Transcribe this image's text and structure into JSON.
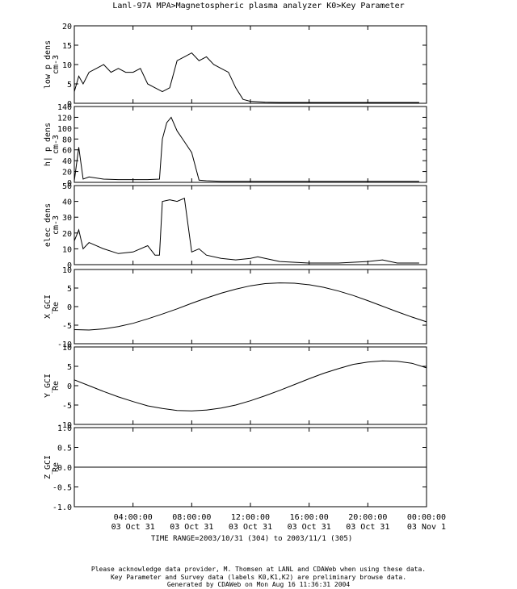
{
  "title": "Lanl-97A  MPA>Magnetospheric plasma analyzer  K0>Key Parameter",
  "time_range": "TIME RANGE=2003/10/31 (304) to 2003/11/1 (305)",
  "footer": [
    "Please acknowledge data provider, M. Thomsen at LANL and CDAWeb when using these data.",
    "Key Parameter and Survey data (labels K0,K1,K2) are preliminary browse data.",
    "Generated by CDAWeb on Mon Aug 16 11:36:31 2004"
  ],
  "chart_data": [
    {
      "type": "line",
      "ylabel": "low p dens",
      "yunit": "cm-3",
      "ylim": [
        0,
        20
      ],
      "yticks": [
        "0",
        "5",
        "10",
        "15",
        "20"
      ],
      "x": [
        0,
        0.3,
        0.6,
        1.0,
        1.5,
        2.0,
        2.5,
        3.0,
        3.5,
        4.0,
        4.5,
        5.0,
        5.5,
        6.0,
        6.5,
        7.0,
        7.5,
        8.0,
        8.5,
        9.0,
        9.5,
        10.0,
        10.5,
        11.0,
        11.5,
        12.0,
        13.0,
        14.0,
        16.0,
        18.0,
        20.0,
        22.0,
        23.5
      ],
      "y": [
        3,
        7,
        5,
        8,
        9,
        10,
        8,
        9,
        8,
        8,
        9,
        5,
        4,
        3,
        4,
        11,
        12,
        13,
        11,
        12,
        10,
        9,
        8,
        4,
        1,
        0.5,
        0.3,
        0.2,
        0.2,
        0.2,
        0.2,
        0.2,
        0.2
      ]
    },
    {
      "type": "line",
      "ylabel": "h| p dens",
      "yunit": "cm-3",
      "ylim": [
        0,
        140
      ],
      "yticks": [
        "0",
        "20",
        "40",
        "60",
        "80",
        "100",
        "120",
        "140"
      ],
      "x": [
        0,
        0.3,
        0.6,
        1.0,
        2.0,
        3.0,
        4.0,
        5.0,
        5.8,
        6.0,
        6.3,
        6.6,
        7.0,
        7.5,
        8.0,
        8.5,
        9.0,
        10.0,
        12.0,
        15.0,
        18.0,
        21.0,
        23.5
      ],
      "y": [
        3,
        65,
        6,
        10,
        6,
        5,
        5,
        5,
        6,
        80,
        110,
        120,
        95,
        75,
        55,
        4,
        3,
        2,
        2,
        2,
        2,
        2,
        2
      ]
    },
    {
      "type": "line",
      "ylabel": "elec dens",
      "yunit": "cm-3",
      "ylim": [
        0,
        50
      ],
      "yticks": [
        "0",
        "10",
        "20",
        "30",
        "40",
        "50"
      ],
      "x": [
        0,
        0.3,
        0.6,
        1.0,
        2.0,
        3.0,
        4.0,
        5.0,
        5.5,
        5.8,
        6.0,
        6.5,
        7.0,
        7.5,
        8.0,
        8.5,
        9.0,
        10.0,
        11.0,
        12.0,
        12.5,
        13.0,
        14.0,
        16.0,
        18.0,
        20.0,
        21.0,
        22.0,
        23.5
      ],
      "y": [
        15,
        22,
        10,
        14,
        10,
        7,
        8,
        12,
        6,
        6,
        40,
        41,
        40,
        42,
        8,
        10,
        6,
        4,
        3,
        4,
        5,
        4,
        2,
        1,
        1,
        2,
        3,
        1,
        1
      ]
    },
    {
      "type": "line",
      "ylabel": "X_GCI",
      "yunit": "Re",
      "ylim": [
        -10,
        10
      ],
      "yticks": [
        "-10",
        "-5",
        "0",
        "5",
        "10"
      ],
      "x": [
        0,
        1,
        2,
        3,
        4,
        5,
        6,
        7,
        8,
        9,
        10,
        11,
        12,
        13,
        14,
        15,
        16,
        17,
        18,
        19,
        20,
        21,
        22,
        23,
        24
      ],
      "y": [
        -6.2,
        -6.3,
        -6.0,
        -5.4,
        -4.5,
        -3.3,
        -2.0,
        -0.6,
        0.9,
        2.3,
        3.6,
        4.7,
        5.6,
        6.2,
        6.4,
        6.3,
        5.9,
        5.2,
        4.2,
        3.0,
        1.6,
        0.1,
        -1.4,
        -2.8,
        -4.1
      ]
    },
    {
      "type": "line",
      "ylabel": "Y_GCI",
      "yunit": "Re",
      "ylim": [
        -10,
        10
      ],
      "yticks": [
        "-10",
        "-5",
        "0",
        "5",
        "10"
      ],
      "x": [
        0,
        1,
        2,
        3,
        4,
        5,
        6,
        7,
        8,
        9,
        10,
        11,
        12,
        13,
        14,
        15,
        16,
        17,
        18,
        19,
        20,
        21,
        22,
        23,
        24
      ],
      "y": [
        1.5,
        0.0,
        -1.5,
        -2.9,
        -4.1,
        -5.2,
        -5.9,
        -6.4,
        -6.5,
        -6.3,
        -5.8,
        -5.0,
        -3.9,
        -2.6,
        -1.2,
        0.3,
        1.8,
        3.2,
        4.4,
        5.5,
        6.1,
        6.4,
        6.3,
        5.8,
        4.6
      ]
    },
    {
      "type": "line",
      "ylabel": "Z_GCI",
      "yunit": "Re",
      "ylim": [
        -1.0,
        1.0
      ],
      "yticks": [
        "-1.0",
        "-0.5",
        "0.0",
        "0.5",
        "1.0"
      ],
      "x": [
        0,
        24
      ],
      "y": [
        0.0,
        0.0
      ]
    }
  ],
  "xaxis": {
    "xlim": [
      0,
      24
    ],
    "ticks": [
      {
        "value": 4,
        "time": "04:00:00",
        "date": "03 Oct 31"
      },
      {
        "value": 8,
        "time": "08:00:00",
        "date": "03 Oct 31"
      },
      {
        "value": 12,
        "time": "12:00:00",
        "date": "03 Oct 31"
      },
      {
        "value": 16,
        "time": "16:00:00",
        "date": "03 Oct 31"
      },
      {
        "value": 20,
        "time": "20:00:00",
        "date": "03 Oct 31"
      },
      {
        "value": 24,
        "time": "00:00:00",
        "date": "03 Nov  1"
      }
    ]
  }
}
